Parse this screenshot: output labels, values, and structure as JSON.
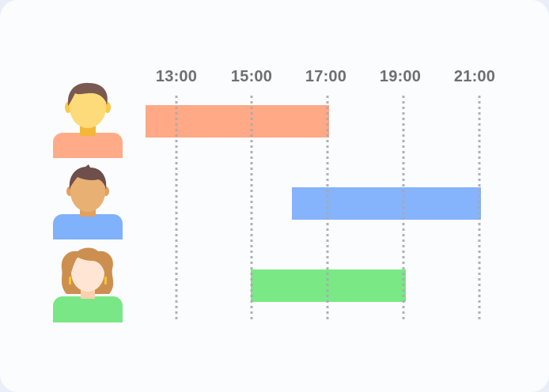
{
  "timeline": {
    "hours": [
      "13:00",
      "15:00",
      "17:00",
      "19:00",
      "21:00"
    ]
  },
  "people": [
    {
      "name": "person-1",
      "shirt_color": "#ffab88",
      "skin_color": "#fddb7a",
      "hair_color": "#7a5a50",
      "bar_color": "#ffa987",
      "bar_start": "12:25",
      "bar_end": "17:00"
    },
    {
      "name": "person-2",
      "shirt_color": "#80b1fb",
      "skin_color": "#e9b074",
      "hair_color": "#6e4f4b",
      "bar_color": "#85b3fc",
      "bar_start": "16:10",
      "bar_end": "21:00"
    },
    {
      "name": "person-3",
      "shirt_color": "#79e785",
      "skin_color": "#ffe6d4",
      "hair_color": "#cd8f50",
      "bar_color": "#79e885",
      "bar_start": "15:00",
      "bar_end": "19:00"
    }
  ],
  "colors": {
    "gridline": "#b9b9bd",
    "label": "#6f6f6f",
    "card": "#fbfcfe"
  }
}
